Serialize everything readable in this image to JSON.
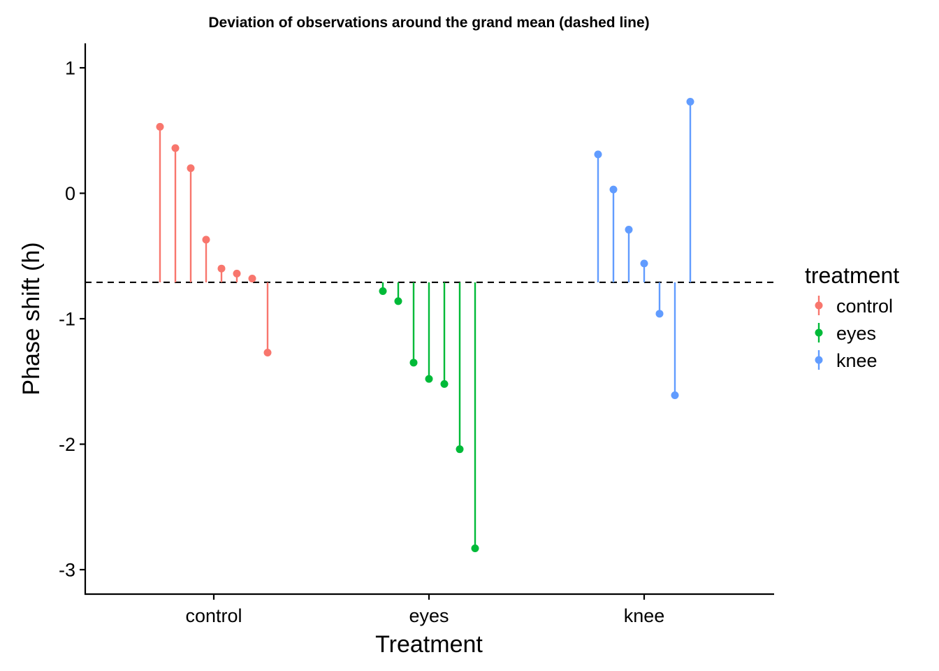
{
  "chart_data": {
    "type": "scatter",
    "title": "Deviation of observations around the grand mean (dashed line)",
    "xlabel": "Treatment",
    "ylabel": "Phase shift (h)",
    "ylim": [
      -3.2,
      1.2
    ],
    "yticks": [
      1,
      0,
      -1,
      -2,
      -3
    ],
    "categories": [
      "control",
      "eyes",
      "knee"
    ],
    "grand_mean": -0.71,
    "grid": false,
    "legend": {
      "title": "treatment",
      "position": "right",
      "entries": [
        "control",
        "eyes",
        "knee"
      ]
    },
    "series": [
      {
        "name": "control",
        "color": "#F8766D",
        "category": "control",
        "values": [
          0.53,
          0.36,
          0.2,
          -0.37,
          -0.6,
          -0.64,
          -0.68,
          -1.27
        ]
      },
      {
        "name": "eyes",
        "color": "#00BA38",
        "category": "eyes",
        "values": [
          -0.78,
          -0.86,
          -1.35,
          -1.48,
          -1.52,
          -2.04,
          -2.83
        ]
      },
      {
        "name": "knee",
        "color": "#619CFF",
        "category": "knee",
        "values": [
          0.31,
          0.03,
          -0.29,
          -0.56,
          -0.96,
          -1.61,
          0.73
        ]
      }
    ]
  }
}
